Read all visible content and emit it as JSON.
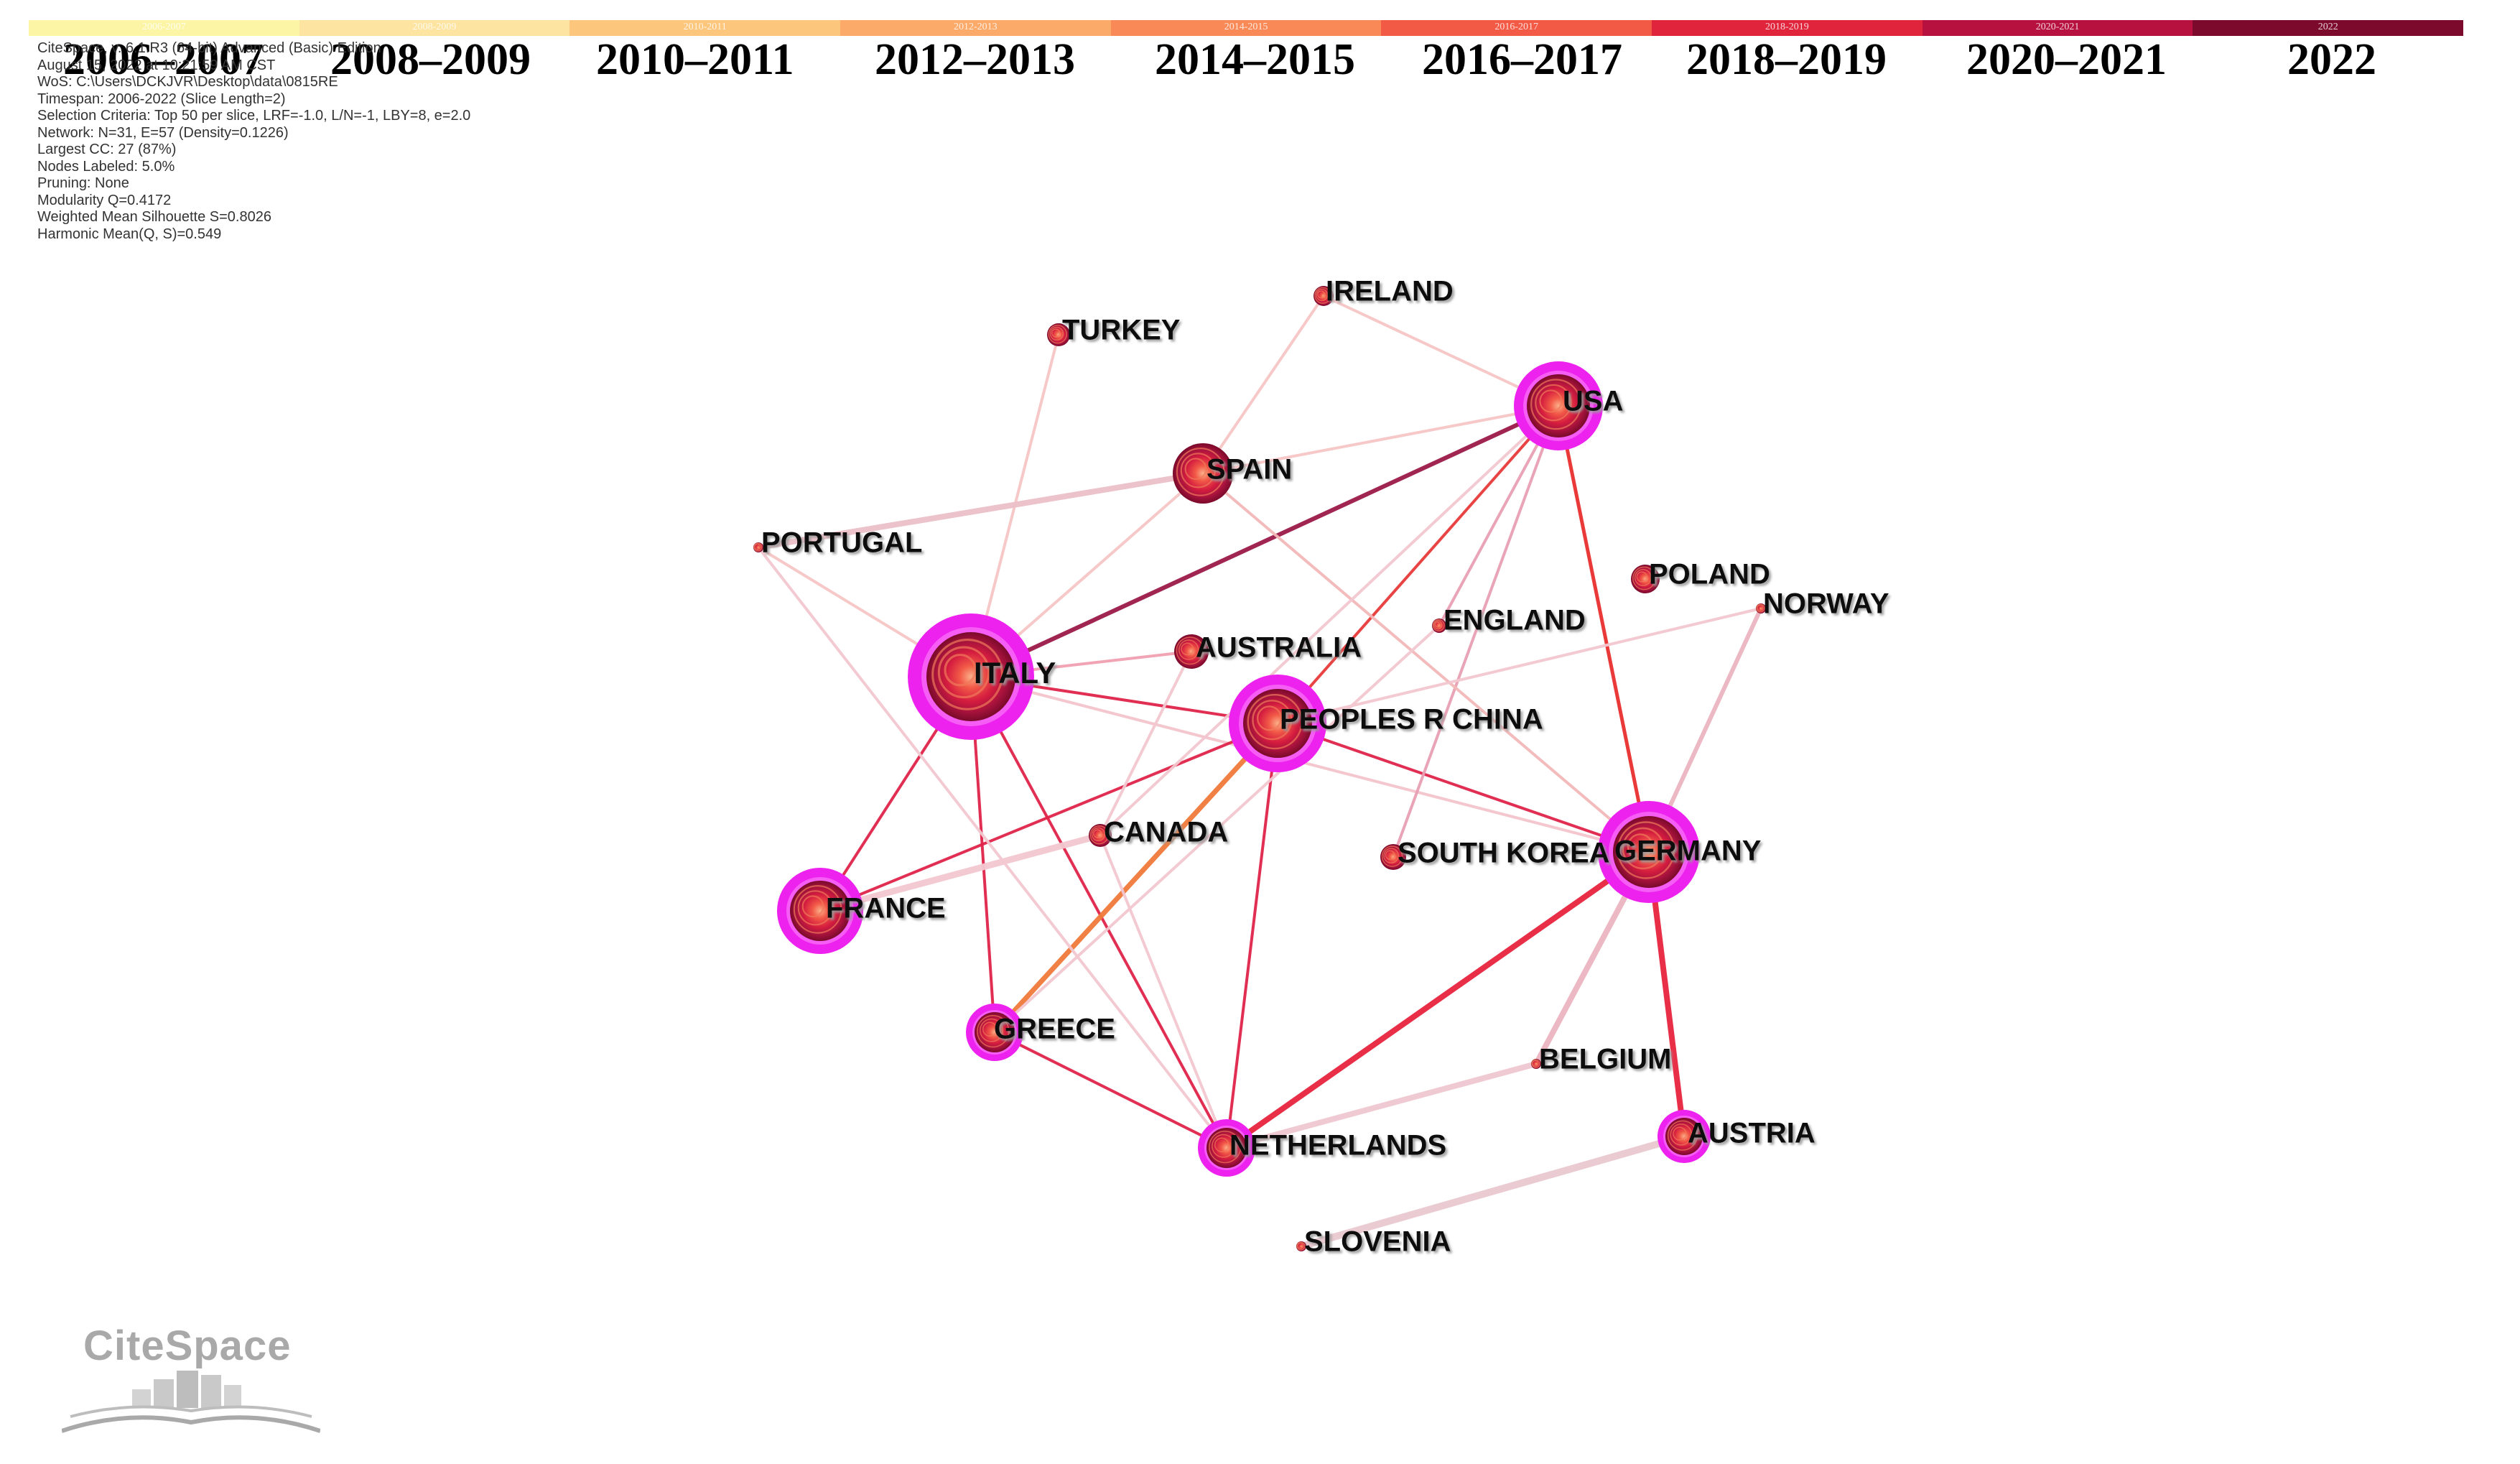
{
  "timeline": {
    "bar_labels": [
      "2006-2007",
      "2008-2009",
      "2010-2011",
      "2012-2013",
      "2014-2015",
      "2016-2017",
      "2018-2019",
      "2020-2021",
      "2022"
    ],
    "year_labels": [
      "2006–2007",
      "2008–2009",
      "2010–2011",
      "2012–2013",
      "2014–2015",
      "2016–2017",
      "2018–2019",
      "2020–2021",
      "2022"
    ],
    "colors": [
      "#fdf5a6",
      "#fde4a0",
      "#fcc67c",
      "#fbaa6a",
      "#f98a57",
      "#f35a45",
      "#e0243c",
      "#b7123f",
      "#7c0a2c"
    ]
  },
  "info_lines": [
    "CiteSpace, v. 6.1.R3 (64-bit) Advanced (Basic) Edition",
    "August 15, 2022 at 10:21:59 AM CST",
    "WoS: C:\\Users\\DCKJVR\\Desktop\\data\\0815RE",
    "Timespan: 2006-2022 (Slice Length=2)",
    "Selection Criteria: Top 50 per slice, LRF=-1.0, L/N=-1, LBY=8, e=2.0",
    "Network: N=31, E=57 (Density=0.1226)",
    "Largest CC: 27 (87%)",
    "Nodes Labeled: 5.0%",
    "Pruning: None",
    "Modularity Q=0.4172",
    "Weighted Mean Silhouette S=0.8026",
    "Harmonic Mean(Q, S)=0.549"
  ],
  "logo": {
    "text": "CiteSpace"
  },
  "nodes": [
    {
      "id": "italy",
      "label": "ITALY",
      "ring": "burst",
      "size": "xl"
    },
    {
      "id": "peoples_r_china",
      "label": "PEOPLES R CHINA",
      "ring": "burst",
      "size": "lg"
    },
    {
      "id": "germany",
      "label": "GERMANY",
      "ring": "burst",
      "size": "lg"
    },
    {
      "id": "usa",
      "label": "USA",
      "ring": "burst",
      "size": "lg"
    },
    {
      "id": "france",
      "label": "FRANCE",
      "ring": "burst",
      "size": "md"
    },
    {
      "id": "spain",
      "label": "SPAIN",
      "ring": "none",
      "size": "md"
    },
    {
      "id": "greece",
      "label": "GREECE",
      "ring": "burst",
      "size": "sm"
    },
    {
      "id": "netherlands",
      "label": "NETHERLANDS",
      "ring": "burst",
      "size": "sm"
    },
    {
      "id": "austria",
      "label": "AUSTRIA",
      "ring": "burst",
      "size": "sm"
    },
    {
      "id": "australia",
      "label": "AUSTRALIA",
      "ring": "none",
      "size": "sm"
    },
    {
      "id": "canada",
      "label": "CANADA",
      "ring": "none",
      "size": "xs"
    },
    {
      "id": "poland",
      "label": "POLAND",
      "ring": "none",
      "size": "xs"
    },
    {
      "id": "south_korea",
      "label": "SOUTH KOREA",
      "ring": "none",
      "size": "xs"
    },
    {
      "id": "ireland",
      "label": "IRELAND",
      "ring": "none",
      "size": "xs"
    },
    {
      "id": "turkey",
      "label": "TURKEY",
      "ring": "none",
      "size": "xs"
    },
    {
      "id": "england",
      "label": "ENGLAND",
      "ring": "none",
      "size": "xxs"
    },
    {
      "id": "norway",
      "label": "NORWAY",
      "ring": "none",
      "size": "xxs"
    },
    {
      "id": "portugal",
      "label": "PORTUGAL",
      "ring": "none",
      "size": "xxs"
    },
    {
      "id": "belgium",
      "label": "BELGIUM",
      "ring": "none",
      "size": "xxs"
    },
    {
      "id": "slovenia",
      "label": "SLOVENIA",
      "ring": "none",
      "size": "xxs"
    }
  ],
  "edges": [
    {
      "from": "italy",
      "to": "usa",
      "color": "#9b1a47"
    },
    {
      "from": "italy",
      "to": "peoples_r_china",
      "color": "#e0244a"
    },
    {
      "from": "italy",
      "to": "france",
      "color": "#e0244a"
    },
    {
      "from": "italy",
      "to": "greece",
      "color": "#e0244a"
    },
    {
      "from": "italy",
      "to": "netherlands",
      "color": "#e0244a"
    },
    {
      "from": "italy",
      "to": "australia",
      "color": "#f1a0b0"
    },
    {
      "from": "italy",
      "to": "spain",
      "color": "#f7c6c6"
    },
    {
      "from": "italy",
      "to": "turkey",
      "color": "#f7c6c6"
    },
    {
      "from": "italy",
      "to": "portugal",
      "color": "#f7c6c6"
    },
    {
      "from": "italy",
      "to": "germany",
      "color": "#f4c4cc"
    },
    {
      "from": "peoples_r_china",
      "to": "germany",
      "color": "#e0244a"
    },
    {
      "from": "peoples_r_china",
      "to": "usa",
      "color": "#e83a3a"
    },
    {
      "from": "peoples_r_china",
      "to": "france",
      "color": "#e0244a"
    },
    {
      "from": "peoples_r_china",
      "to": "netherlands",
      "color": "#e0244a"
    },
    {
      "from": "peoples_r_china",
      "to": "greece",
      "color": "#f07a3a"
    },
    {
      "from": "germany",
      "to": "netherlands",
      "color": "#e8243f"
    },
    {
      "from": "germany",
      "to": "austria",
      "color": "#e8243f"
    },
    {
      "from": "germany",
      "to": "usa",
      "color": "#e8302f"
    },
    {
      "from": "germany",
      "to": "belgium",
      "color": "#eab5c0"
    },
    {
      "from": "germany",
      "to": "norway",
      "color": "#eab5c0"
    },
    {
      "from": "greece",
      "to": "netherlands",
      "color": "#e0244a"
    },
    {
      "from": "usa",
      "to": "spain",
      "color": "#f7c6c6"
    },
    {
      "from": "usa",
      "to": "ireland",
      "color": "#f7c6c6"
    },
    {
      "from": "usa",
      "to": "england",
      "color": "#e8a0b4"
    },
    {
      "from": "usa",
      "to": "south_korea",
      "color": "#e8a0b4"
    },
    {
      "from": "spain",
      "to": "ireland",
      "color": "#f7c6c6"
    },
    {
      "from": "spain",
      "to": "portugal",
      "color": "#ecc0c8"
    },
    {
      "from": "spain",
      "to": "germany",
      "color": "#f3b8b8"
    },
    {
      "from": "austria",
      "to": "slovenia",
      "color": "#e9c9d0"
    },
    {
      "from": "netherlands",
      "to": "belgium",
      "color": "#f0c8d0"
    },
    {
      "from": "france",
      "to": "canada",
      "color": "#f3c8d0"
    },
    {
      "from": "canada",
      "to": "netherlands",
      "color": "#f3c8d0"
    },
    {
      "from": "canada",
      "to": "australia",
      "color": "#f3c8d0"
    },
    {
      "from": "canada",
      "to": "usa",
      "color": "#f3c8d0"
    },
    {
      "from": "greece",
      "to": "england",
      "color": "#f3c8d0"
    },
    {
      "from": "peoples_r_china",
      "to": "norway",
      "color": "#f3c8d0"
    },
    {
      "from": "portugal",
      "to": "netherlands",
      "color": "#f3c8d0"
    }
  ]
}
